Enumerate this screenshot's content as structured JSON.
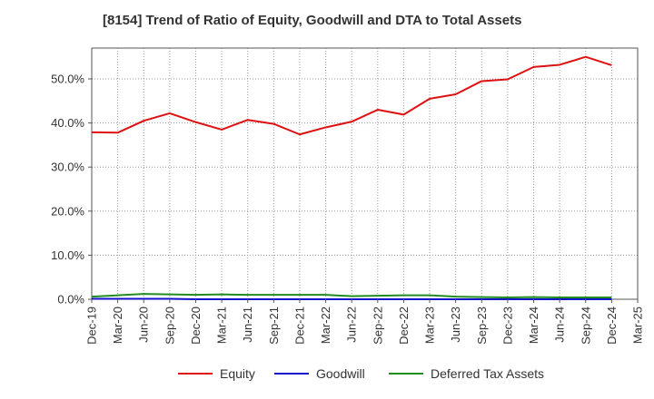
{
  "chart_data": {
    "type": "line",
    "title": "[8154]  Trend of Ratio of Equity, Goodwill and DTA to Total Assets",
    "xlabel": "",
    "ylabel": "",
    "ylim": [
      0,
      57
    ],
    "y_ticks": [
      "0.0%",
      "10.0%",
      "20.0%",
      "30.0%",
      "40.0%",
      "50.0%"
    ],
    "y_tick_values": [
      0,
      10,
      20,
      30,
      40,
      50
    ],
    "grid": true,
    "legend_position": "bottom",
    "categories": [
      "Dec-19",
      "Mar-20",
      "Jun-20",
      "Sep-20",
      "Dec-20",
      "Mar-21",
      "Jun-21",
      "Sep-21",
      "Dec-21",
      "Mar-22",
      "Jun-22",
      "Sep-22",
      "Dec-22",
      "Mar-23",
      "Jun-23",
      "Sep-23",
      "Dec-23",
      "Mar-24",
      "Jun-24",
      "Sep-24",
      "Dec-24",
      "Mar-25"
    ],
    "series": [
      {
        "name": "Equity",
        "color": "#dd1111",
        "values": [
          37.9,
          37.8,
          40.5,
          42.2,
          40.2,
          38.5,
          40.7,
          39.8,
          37.4,
          39.0,
          40.3,
          43.0,
          41.9,
          45.5,
          46.5,
          49.5,
          49.9,
          52.7,
          53.2,
          55.0,
          53.1,
          null
        ]
      },
      {
        "name": "Goodwill",
        "color": "#1111cc",
        "values": [
          0.1,
          0.1,
          0.1,
          0.1,
          0.0,
          0.0,
          0.0,
          0.0,
          0.0,
          0.0,
          0.0,
          0.0,
          0.0,
          0.0,
          0.0,
          0.0,
          0.0,
          0.0,
          0.0,
          0.0,
          0.0,
          null
        ]
      },
      {
        "name": "Deferred Tax Assets",
        "color": "#228b22",
        "values": [
          0.6,
          0.9,
          1.2,
          1.1,
          1.0,
          1.1,
          1.0,
          1.0,
          1.0,
          1.0,
          0.7,
          0.8,
          0.9,
          0.9,
          0.6,
          0.5,
          0.4,
          0.5,
          0.4,
          0.4,
          0.4,
          null
        ]
      }
    ]
  }
}
